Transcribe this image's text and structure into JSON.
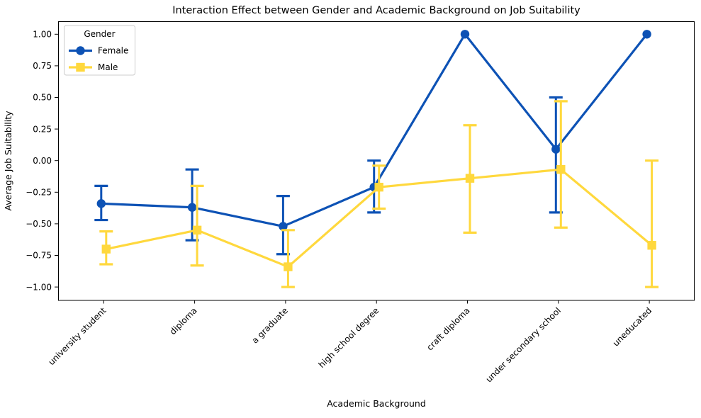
{
  "chart_data": {
    "type": "line",
    "title": "Interaction Effect between Gender and Academic Background on Job Suitability",
    "xlabel": "Academic Background",
    "ylabel": "Average Job Suitability",
    "categories": [
      "university student",
      "diploma",
      "a graduate",
      "high school degree",
      "craft diploma",
      "under secondary school",
      "uneducated"
    ],
    "ylim": [
      -1.1,
      1.1
    ],
    "yticks": [
      1.0,
      0.75,
      0.5,
      0.25,
      0.0,
      -0.25,
      -0.5,
      -0.75,
      -1.0
    ],
    "ytick_labels": [
      "1.00",
      "0.75",
      "0.50",
      "0.25",
      "0.00",
      "−0.25",
      "−0.50",
      "−0.75",
      "−1.00"
    ],
    "grid": false,
    "legend": {
      "title": "Gender",
      "position": "upper left"
    },
    "series": [
      {
        "name": "Female",
        "color": "#0d52b5",
        "marker": "circle",
        "values": [
          -0.34,
          -0.37,
          -0.52,
          -0.21,
          1.0,
          0.09,
          1.0
        ],
        "err_hi": [
          -0.2,
          -0.07,
          -0.28,
          0.0,
          1.0,
          0.5,
          1.0
        ],
        "err_lo": [
          -0.47,
          -0.63,
          -0.74,
          -0.41,
          1.0,
          -0.41,
          1.0
        ]
      },
      {
        "name": "Male",
        "color": "#ffd83d",
        "marker": "square",
        "values": [
          -0.7,
          -0.55,
          -0.84,
          -0.21,
          -0.14,
          -0.07,
          -0.67
        ],
        "err_hi": [
          -0.56,
          -0.2,
          -0.55,
          -0.04,
          0.28,
          0.47,
          0.0
        ],
        "err_lo": [
          -0.82,
          -0.83,
          -1.0,
          -0.38,
          -0.57,
          -0.53,
          -1.0
        ]
      }
    ]
  }
}
